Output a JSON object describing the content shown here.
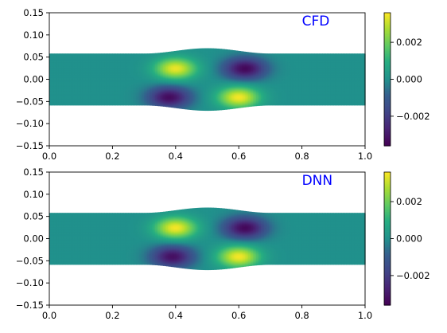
{
  "chart_data": [
    {
      "type": "heatmap",
      "annotation": "CFD",
      "xlim": [
        0.0,
        1.0
      ],
      "ylim": [
        -0.15,
        0.15
      ],
      "x_ticks": [
        "0.0",
        "0.2",
        "0.4",
        "0.6",
        "0.8",
        "1.0"
      ],
      "y_ticks": [
        "0.15",
        "0.10",
        "0.05",
        "0.00",
        "−0.05",
        "−0.10",
        "−0.15"
      ],
      "colormap": "viridis",
      "color_range": [
        -0.0036,
        0.0036
      ],
      "colorbar_ticks": [
        "0.002",
        "0.000",
        "−0.002"
      ],
      "domain": {
        "channel_half_height": 0.058,
        "bump_center_x": 0.5,
        "bump_extra_height": 0.012,
        "bump_half_width": 0.2
      },
      "extrema": [
        {
          "x": 0.4,
          "y": 0.025,
          "value": 0.0034
        },
        {
          "x": 0.38,
          "y": -0.04,
          "value": -0.0033
        },
        {
          "x": 0.62,
          "y": 0.025,
          "value": -0.0034
        },
        {
          "x": 0.6,
          "y": -0.04,
          "value": 0.0035
        }
      ]
    },
    {
      "type": "heatmap",
      "annotation": "DNN",
      "xlim": [
        0.0,
        1.0
      ],
      "ylim": [
        -0.15,
        0.15
      ],
      "x_ticks": [
        "0.0",
        "0.2",
        "0.4",
        "0.6",
        "0.8",
        "1.0"
      ],
      "y_ticks": [
        "0.15",
        "0.10",
        "0.05",
        "0.00",
        "−0.05",
        "−0.10",
        "−0.15"
      ],
      "colormap": "viridis",
      "color_range": [
        -0.0036,
        0.0036
      ],
      "colorbar_ticks": [
        "0.002",
        "0.000",
        "−0.002"
      ],
      "domain": {
        "channel_half_height": 0.058,
        "bump_center_x": 0.5,
        "bump_extra_height": 0.012,
        "bump_half_width": 0.2
      },
      "extrema": [
        {
          "x": 0.4,
          "y": 0.025,
          "value": 0.0035
        },
        {
          "x": 0.39,
          "y": -0.04,
          "value": -0.0032
        },
        {
          "x": 0.62,
          "y": 0.025,
          "value": -0.0034
        },
        {
          "x": 0.6,
          "y": -0.04,
          "value": 0.0035
        }
      ]
    }
  ]
}
